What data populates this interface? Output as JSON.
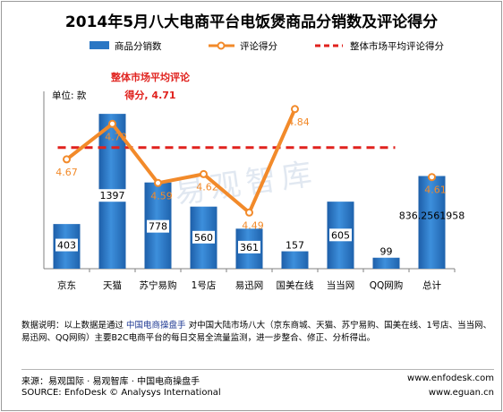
{
  "chart_data": {
    "type": "bar",
    "title": "2014年5月八大电商平台电饭煲商品分销数及评论得分",
    "categories": [
      "京东",
      "天猫",
      "苏宁易购",
      "1号店",
      "易迅网",
      "国美在线",
      "当当网",
      "QQ网购",
      "总计"
    ],
    "series": [
      {
        "name": "商品分销数",
        "kind": "bar",
        "axis": "left",
        "values": [
          403,
          1397,
          778,
          560,
          361,
          157,
          605,
          99,
          836.2561958
        ],
        "labels": [
          "403",
          "1397",
          "778",
          "560",
          "361",
          "157",
          "605",
          "99",
          "836.2561958"
        ]
      },
      {
        "name": "评论得分",
        "kind": "line",
        "axis": "right",
        "values": [
          4.67,
          4.79,
          4.59,
          4.62,
          4.49,
          4.84,
          null,
          null,
          4.61
        ],
        "labels": [
          "4.67",
          "4.79",
          "4.59",
          "4.62",
          "4.49",
          "4.84",
          "",
          "",
          "4.61"
        ]
      },
      {
        "name": "整体市场平均评论得分",
        "kind": "dashed-line",
        "axis": "right",
        "value": 4.71
      }
    ],
    "ylabel": "单位: 款",
    "ylim": [
      0,
      1600
    ],
    "y2lim": [
      4.3,
      4.9
    ],
    "grid": false,
    "legend_position": "top",
    "annotation": {
      "line1": "整体市场平均评论",
      "line2": "得分, 4.71"
    },
    "colors": {
      "bar": "#2a77c4",
      "line": "#f28a2a",
      "avg": "#e0221e",
      "score_text": "#f28a2a"
    }
  },
  "watermark": "易观智库",
  "notes": {
    "lead": "数据说明：以上数据是通过",
    "link": "中国电商操盘手",
    "body": "对中国大陆市场八大（京东商城、天猫、苏宁易购、国美在线、1号店、当当网、易迅网、QQ网购）主要B2C电商平台的每日交易全流量监测，进一步整合、修正、分析得出。"
  },
  "source": {
    "cn": "来源：易观国际 · 易观智库 · 中国电商操盘手",
    "en": "SOURCE: EnfoDesk © Analysys International",
    "url1": "www.enfodesk.com",
    "url2": "www.eguan.cn"
  }
}
